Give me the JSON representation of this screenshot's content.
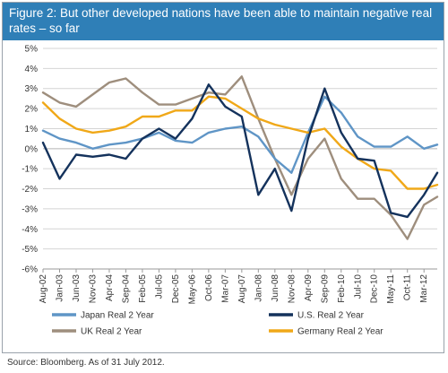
{
  "header": {
    "title": "Figure 2: But other developed nations have been able to maintain negative real rates – so far"
  },
  "footer": {
    "source": "Source: Bloomberg. As of 31 July 2012."
  },
  "colors": {
    "title_bar": "#2f7fb7",
    "japan": "#5f95c6",
    "us": "#14325c",
    "uk": "#9e8e7d",
    "germany": "#f0a818"
  },
  "chart_data": {
    "type": "line",
    "title": "",
    "xlabel": "",
    "ylabel": "",
    "x_tick_labels": [
      "Aug-02",
      "Jan-03",
      "Jun-03",
      "Nov-03",
      "Apr-04",
      "Sep-04",
      "Feb-05",
      "Jul-05",
      "Dec-05",
      "May-06",
      "Oct-06",
      "Mar-07",
      "Aug-07",
      "Jan-08",
      "Jun-08",
      "Nov-08",
      "Apr-09",
      "Sep-09",
      "Feb-10",
      "Jul-10",
      "Dec-10",
      "May-11",
      "Oct-11",
      "Mar-12"
    ],
    "x_range": [
      "2002-08",
      "2012-07"
    ],
    "y_tick_labels": [
      "5%",
      "4%",
      "3%",
      "2%",
      "1%",
      "0%",
      "-1%",
      "-2%",
      "-3%",
      "-4%",
      "-5%",
      "-6%"
    ],
    "ylim": [
      -6,
      5
    ],
    "grid": "horizontal",
    "legend_position": "bottom",
    "x": [
      "2002-08",
      "2003-01",
      "2003-06",
      "2003-11",
      "2004-04",
      "2004-09",
      "2005-02",
      "2005-07",
      "2005-12",
      "2006-05",
      "2006-10",
      "2007-03",
      "2007-08",
      "2008-01",
      "2008-06",
      "2008-11",
      "2009-04",
      "2009-09",
      "2010-02",
      "2010-07",
      "2010-12",
      "2011-05",
      "2011-10",
      "2012-03",
      "2012-07"
    ],
    "series": [
      {
        "name": "Japan Real 2 Year",
        "color_key": "japan",
        "values": [
          0.9,
          0.5,
          0.3,
          0.0,
          0.2,
          0.3,
          0.5,
          0.8,
          0.4,
          0.3,
          0.8,
          1.0,
          1.1,
          0.6,
          -0.5,
          -1.2,
          0.8,
          2.6,
          1.8,
          0.6,
          0.1,
          0.1,
          0.6,
          0.0,
          0.2
        ]
      },
      {
        "name": "U.S. Real 2 Year",
        "color_key": "us",
        "values": [
          0.3,
          -1.5,
          -0.3,
          -0.4,
          -0.3,
          -0.5,
          0.5,
          1.0,
          0.5,
          1.5,
          3.2,
          2.1,
          1.6,
          -2.3,
          -1.0,
          -3.1,
          0.5,
          3.0,
          0.8,
          -0.5,
          -0.6,
          -3.2,
          -3.4,
          -2.3,
          -1.2
        ]
      },
      {
        "name": "UK Real 2 Year",
        "color_key": "uk",
        "values": [
          2.8,
          2.3,
          2.1,
          2.7,
          3.3,
          3.5,
          2.8,
          2.2,
          2.2,
          2.5,
          2.8,
          2.7,
          3.6,
          1.5,
          -0.5,
          -2.3,
          -0.5,
          0.5,
          -1.5,
          -2.5,
          -2.5,
          -3.3,
          -4.5,
          -2.8,
          -2.4
        ]
      },
      {
        "name": "Germany Real 2 Year",
        "color_key": "germany",
        "values": [
          2.3,
          1.5,
          1.0,
          0.8,
          0.9,
          1.1,
          1.6,
          1.6,
          1.9,
          1.9,
          2.6,
          2.5,
          2.0,
          1.5,
          1.2,
          1.0,
          0.8,
          1.0,
          0.1,
          -0.5,
          -1.0,
          -1.1,
          -2.0,
          -2.0,
          -1.8
        ]
      }
    ]
  }
}
